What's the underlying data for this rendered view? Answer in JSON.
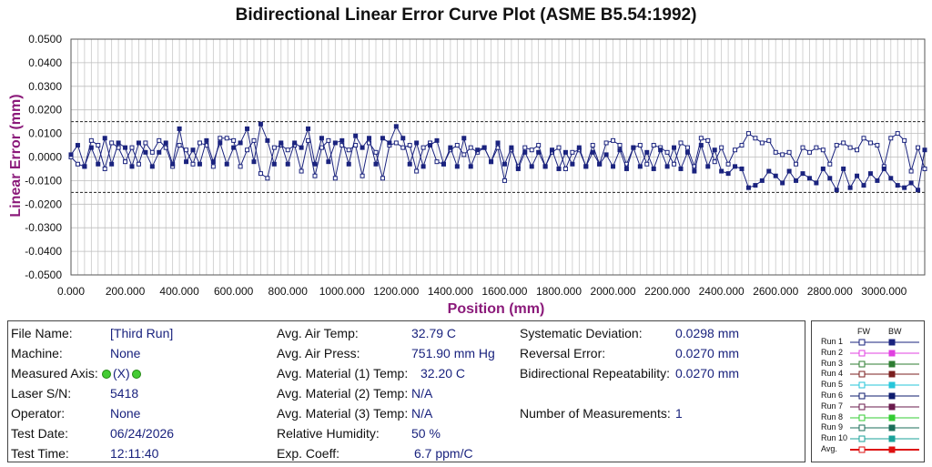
{
  "chart_data": {
    "type": "line",
    "title": "Bidirectional Linear Error Curve Plot (ASME B5.54:1992)",
    "xlabel": "Position (mm)",
    "ylabel": "Linear Error (mm)",
    "xlim": [
      0,
      3150
    ],
    "ylim": [
      -0.05,
      0.05
    ],
    "x_ticks": [
      "0.000",
      "200.000",
      "400.000",
      "600.000",
      "800.000",
      "1000.000",
      "1200.000",
      "1400.000",
      "1600.000",
      "1800.000",
      "2000.000",
      "2200.000",
      "2400.000",
      "2600.000",
      "2800.000",
      "3000.000"
    ],
    "x_tick_values": [
      0,
      200,
      400,
      600,
      800,
      1000,
      1200,
      1400,
      1600,
      1800,
      2000,
      2200,
      2400,
      2600,
      2800,
      3000
    ],
    "y_ticks": [
      "0.0500",
      "0.0400",
      "0.0300",
      "0.0200",
      "0.0100",
      "0.0000",
      "-0.0100",
      "-0.0200",
      "-0.0300",
      "-0.0400",
      "-0.0500"
    ],
    "y_tick_values": [
      0.05,
      0.04,
      0.03,
      0.02,
      0.01,
      0,
      -0.01,
      -0.02,
      -0.03,
      -0.04,
      -0.05
    ],
    "grid": true,
    "limit_lines": [
      0.015,
      -0.015
    ],
    "x": [
      0,
      25,
      50,
      75,
      100,
      125,
      150,
      175,
      200,
      225,
      250,
      275,
      300,
      325,
      350,
      375,
      400,
      425,
      450,
      475,
      500,
      525,
      550,
      575,
      600,
      625,
      650,
      675,
      700,
      725,
      750,
      775,
      800,
      825,
      850,
      875,
      900,
      925,
      950,
      975,
      1000,
      1025,
      1050,
      1075,
      1100,
      1125,
      1150,
      1175,
      1200,
      1225,
      1250,
      1275,
      1300,
      1325,
      1350,
      1375,
      1400,
      1425,
      1450,
      1475,
      1500,
      1525,
      1550,
      1575,
      1600,
      1625,
      1650,
      1675,
      1700,
      1725,
      1750,
      1775,
      1800,
      1825,
      1850,
      1875,
      1900,
      1925,
      1950,
      1975,
      2000,
      2025,
      2050,
      2075,
      2100,
      2125,
      2150,
      2175,
      2200,
      2225,
      2250,
      2275,
      2300,
      2325,
      2350,
      2375,
      2400,
      2425,
      2450,
      2475,
      2500,
      2525,
      2550,
      2575,
      2600,
      2625,
      2650,
      2675,
      2700,
      2725,
      2750,
      2775,
      2800,
      2825,
      2850,
      2875,
      2900,
      2925,
      2950,
      2975,
      3000,
      3025,
      3050,
      3075,
      3100,
      3125,
      3150
    ],
    "series": [
      {
        "name": "FW",
        "values": [
          0.0,
          -0.003,
          -0.004,
          0.007,
          0.005,
          -0.005,
          0.006,
          0.004,
          -0.002,
          0.004,
          -0.003,
          0.006,
          0.002,
          0.007,
          0.004,
          -0.004,
          0.005,
          0.003,
          -0.003,
          0.006,
          0.005,
          -0.004,
          0.008,
          0.008,
          0.007,
          -0.004,
          0.003,
          0.007,
          -0.007,
          -0.009,
          0.004,
          0.005,
          0.003,
          0.005,
          -0.006,
          0.007,
          -0.008,
          0.004,
          0.007,
          -0.009,
          0.005,
          0.003,
          0.005,
          -0.008,
          0.006,
          0.002,
          -0.009,
          0.005,
          0.006,
          0.004,
          0.005,
          -0.006,
          0.004,
          0.006,
          -0.002,
          -0.003,
          0.003,
          0.005,
          0.001,
          0.004,
          0.002,
          0.004,
          -0.002,
          0.004,
          -0.01,
          0.003,
          -0.004,
          0.004,
          0.003,
          0.005,
          -0.004,
          0.002,
          0.004,
          -0.005,
          0.002,
          0.003,
          -0.004,
          0.005,
          -0.003,
          0.006,
          0.007,
          0.005,
          -0.003,
          0.004,
          0.005,
          -0.003,
          0.005,
          0.004,
          0.002,
          -0.003,
          0.006,
          0.004,
          -0.004,
          0.008,
          0.007,
          -0.002,
          0.004,
          -0.003,
          0.003,
          0.005,
          0.01,
          0.008,
          0.006,
          0.007,
          0.002,
          0.001,
          0.002,
          -0.003,
          0.004,
          0.002,
          0.004,
          0.003,
          -0.003,
          0.005,
          0.006,
          0.004,
          0.003,
          0.008,
          0.006,
          0.005,
          -0.004,
          0.008,
          0.01,
          0.007,
          -0.006,
          0.004,
          -0.005
        ]
      },
      {
        "name": "BW",
        "values": [
          0.001,
          0.005,
          -0.004,
          0.004,
          -0.003,
          0.008,
          -0.003,
          0.006,
          0.004,
          -0.004,
          0.006,
          0.002,
          -0.004,
          0.002,
          0.006,
          -0.003,
          0.012,
          -0.002,
          0.003,
          -0.003,
          0.007,
          -0.002,
          0.006,
          -0.003,
          0.004,
          0.006,
          0.012,
          -0.002,
          0.014,
          0.007,
          -0.003,
          0.006,
          -0.003,
          0.006,
          0.004,
          0.012,
          -0.003,
          0.008,
          -0.002,
          0.006,
          0.007,
          -0.003,
          0.009,
          0.004,
          0.008,
          -0.003,
          0.008,
          0.006,
          0.013,
          0.008,
          -0.003,
          0.006,
          -0.004,
          0.005,
          0.007,
          -0.003,
          0.004,
          -0.004,
          0.008,
          -0.004,
          0.003,
          0.004,
          -0.002,
          0.006,
          -0.003,
          0.004,
          -0.005,
          0.002,
          -0.004,
          0.002,
          -0.004,
          0.003,
          -0.005,
          0.002,
          -0.003,
          0.004,
          -0.004,
          0.002,
          -0.003,
          0.001,
          -0.004,
          0.003,
          -0.005,
          0.004,
          -0.004,
          0.002,
          -0.005,
          0.003,
          -0.004,
          0.004,
          -0.005,
          0.002,
          -0.006,
          0.005,
          -0.004,
          0.003,
          -0.006,
          -0.007,
          -0.004,
          -0.005,
          -0.013,
          -0.012,
          -0.01,
          -0.006,
          -0.008,
          -0.011,
          -0.006,
          -0.01,
          -0.007,
          -0.009,
          -0.011,
          -0.005,
          -0.009,
          -0.014,
          -0.005,
          -0.013,
          -0.008,
          -0.012,
          -0.007,
          -0.01,
          -0.005,
          -0.009,
          -0.012,
          -0.013,
          -0.011,
          -0.014,
          0.003
        ]
      }
    ]
  },
  "info": {
    "left": [
      {
        "label": "File Name:",
        "value": "[Third Run]"
      },
      {
        "label": "Machine:",
        "value": "None"
      },
      {
        "label": "Measured Axis:",
        "value": "(X)"
      },
      {
        "label": "Laser S/N:",
        "value": "5418"
      },
      {
        "label": "Operator:",
        "value": "None"
      },
      {
        "label": "Test Date:",
        "value": "06/24/2026"
      },
      {
        "label": "Test Time:",
        "value": "12:11:40"
      }
    ],
    "middle": [
      {
        "label": "Avg. Air Temp:",
        "value": "32.79 C"
      },
      {
        "label": "Avg. Air Press:",
        "value": "751.90 mm Hg"
      },
      {
        "label": "Avg. Material (1) Temp:",
        "value": "32.20 C"
      },
      {
        "label": "Avg. Material (2) Temp:",
        "value": "N/A"
      },
      {
        "label": "Avg. Material (3) Temp:",
        "value": "N/A"
      },
      {
        "label": "Relative Humidity:",
        "value": "50 %"
      },
      {
        "label": "Exp. Coeff:",
        "value": "6.7 ppm/C"
      }
    ],
    "right": [
      {
        "label": "Systematic Deviation:",
        "value": "0.0298 mm"
      },
      {
        "label": "Reversal Error:",
        "value": "0.0270 mm"
      },
      {
        "label": "Bidirectional Repeatability:",
        "value": "0.0270 mm"
      },
      {
        "label": "Number of Measurements:",
        "value": "1"
      }
    ]
  },
  "legend": {
    "fw_header": "FW",
    "bw_header": "BW",
    "runs": [
      {
        "label": "Run 1",
        "color": "#1a237e"
      },
      {
        "label": "Run 2",
        "color": "#e040e0"
      },
      {
        "label": "Run 3",
        "color": "#2e7d32"
      },
      {
        "label": "Run 4",
        "color": "#7b1f1f"
      },
      {
        "label": "Run 5",
        "color": "#26c6da"
      },
      {
        "label": "Run 6",
        "color": "#0d1b6e"
      },
      {
        "label": "Run 7",
        "color": "#6a1b4d"
      },
      {
        "label": "Run 8",
        "color": "#33cc33"
      },
      {
        "label": "Run 9",
        "color": "#1b6e5a"
      },
      {
        "label": "Run 10",
        "color": "#1aa29a"
      },
      {
        "label": "Avg.",
        "color": "#dd1111"
      }
    ]
  },
  "colors": {
    "series": "#1a237e",
    "axis_label": "#8b1a7a",
    "value_text": "#1a237e"
  }
}
